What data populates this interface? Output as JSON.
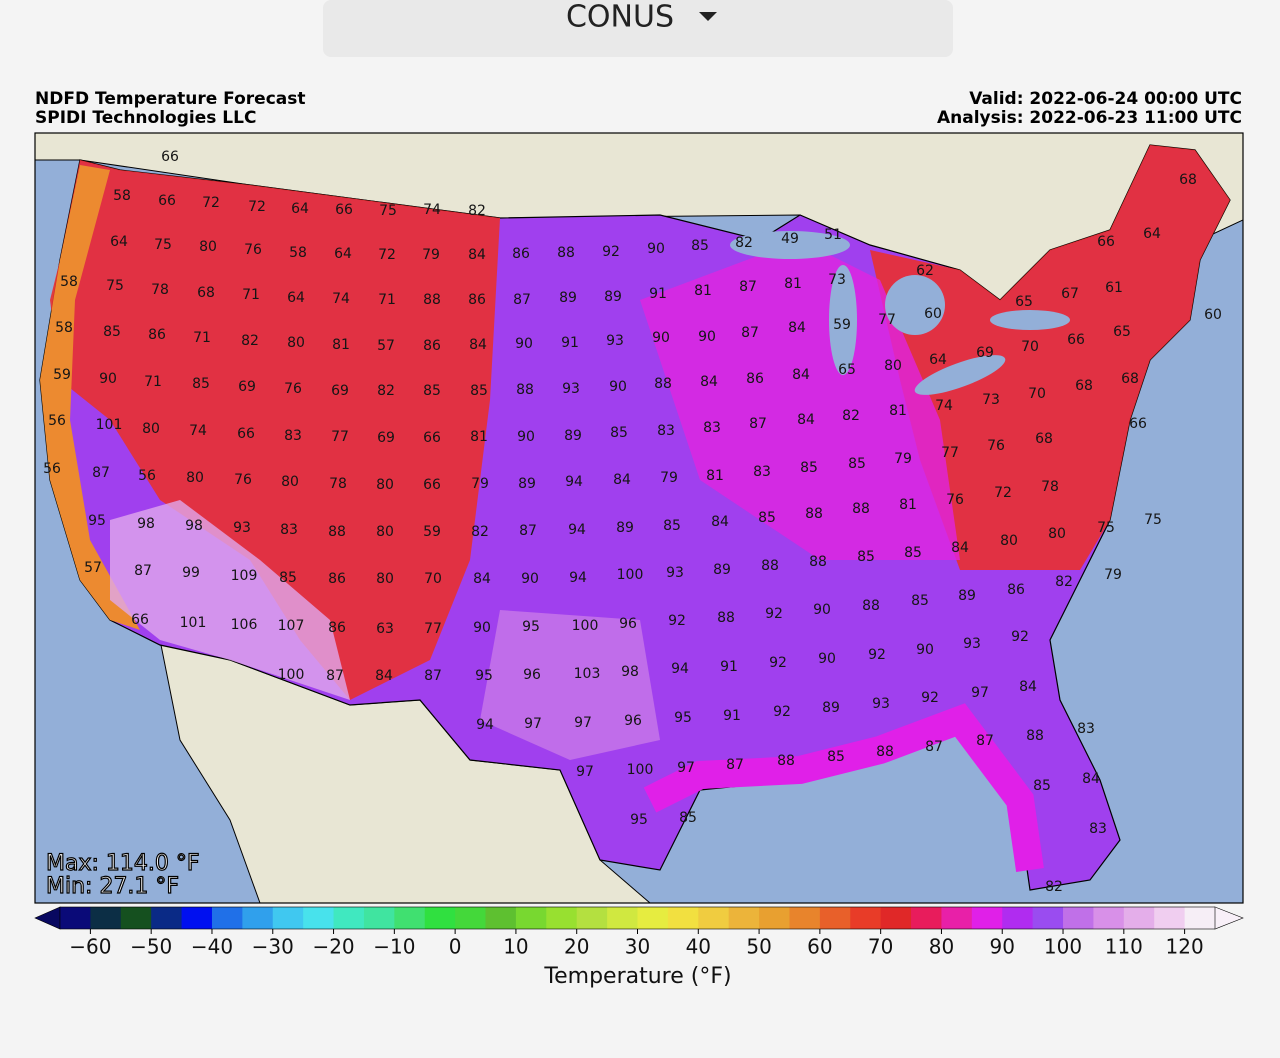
{
  "header": {
    "selector": "CONUS"
  },
  "map": {
    "title": "NDFD Temperature Forecast",
    "credit": "SPIDI Technologies LLC",
    "valid": "Valid: 2022-06-24 00:00 UTC",
    "analysis": "Analysis: 2022-06-23 11:00 UTC",
    "max": "Max: 114.0 °F",
    "min": "Min: 27.1 °F",
    "stations": [
      66,
      58,
      66,
      72,
      72,
      64,
      66,
      75,
      74,
      82,
      64,
      75,
      80,
      76,
      58,
      64,
      72,
      79,
      84,
      86,
      88,
      92,
      90,
      85,
      82,
      49,
      51,
      66,
      64,
      68,
      58,
      75,
      78,
      68,
      71,
      64,
      74,
      71,
      88,
      86,
      87,
      89,
      89,
      91,
      81,
      87,
      81,
      73,
      62,
      67,
      61,
      65,
      60,
      58,
      85,
      86,
      71,
      82,
      80,
      81,
      57,
      86,
      84,
      90,
      91,
      93,
      90,
      90,
      87,
      84,
      59,
      77,
      60,
      69,
      70,
      66,
      65,
      59,
      90,
      71,
      85,
      69,
      76,
      69,
      82,
      85,
      85,
      88,
      93,
      90,
      88,
      84,
      86,
      84,
      65,
      80,
      64,
      73,
      70,
      68,
      68,
      56,
      101,
      80,
      74,
      66,
      83,
      77,
      69,
      66,
      81,
      90,
      89,
      85,
      83,
      83,
      87,
      84,
      82,
      81,
      74,
      76,
      68,
      66,
      56,
      87,
      56,
      80,
      76,
      80,
      78,
      80,
      66,
      79,
      89,
      94,
      84,
      79,
      81,
      83,
      85,
      85,
      79,
      77,
      76,
      72,
      78,
      95,
      98,
      98,
      93,
      83,
      88,
      80,
      59,
      82,
      87,
      94,
      89,
      85,
      84,
      85,
      88,
      88,
      81,
      80,
      80,
      75,
      75,
      57,
      87,
      99,
      109,
      85,
      86,
      80,
      70,
      84,
      90,
      94,
      100,
      93,
      89,
      88,
      88,
      85,
      85,
      84,
      86,
      82,
      79,
      66,
      101,
      106,
      107,
      86,
      63,
      77,
      90,
      95,
      100,
      96,
      92,
      88,
      92,
      90,
      88,
      85,
      89,
      93,
      92,
      100,
      87,
      84,
      87,
      95,
      96,
      103,
      98,
      94,
      91,
      92,
      90,
      92,
      90,
      92,
      97,
      84,
      94,
      97,
      97,
      96,
      95,
      91,
      92,
      89,
      93,
      88,
      87,
      87,
      88,
      83,
      97,
      100,
      97,
      87,
      88,
      85,
      85,
      84,
      95,
      85,
      83,
      82
    ]
  },
  "colorbar": {
    "label": "Temperature (°F)",
    "range": [
      -65,
      125
    ],
    "step": 5,
    "under_color": "#080860",
    "over_color": "#f8f0f8",
    "colors": [
      "#0a0a78",
      "#0c2e45",
      "#15501f",
      "#0a2a86",
      "#0010f0",
      "#2070e8",
      "#30a0ec",
      "#40c8f0",
      "#48e2ec",
      "#40e8c0",
      "#40e4a0",
      "#40e070",
      "#30e040",
      "#44d83a",
      "#5ec030",
      "#78d830",
      "#98e030",
      "#b4e040",
      "#d0e840",
      "#e6ec40",
      "#f2e040",
      "#f0cc40",
      "#ecb43a",
      "#e8a030",
      "#e8842c",
      "#e8602a",
      "#e83c28",
      "#e02828",
      "#e81c5c",
      "#e820a8",
      "#e020e8",
      "#b02cf0",
      "#9a4cf0",
      "#c070e8",
      "#d890e8",
      "#e4aeea",
      "#f0cef0",
      "#f6eef6"
    ],
    "ticks": [
      {
        "value": -60,
        "label": "−60"
      },
      {
        "value": -50,
        "label": "−50"
      },
      {
        "value": -40,
        "label": "−40"
      },
      {
        "value": -30,
        "label": "−30"
      },
      {
        "value": -20,
        "label": "−20"
      },
      {
        "value": -10,
        "label": "−10"
      },
      0,
      10,
      20,
      30,
      40,
      50,
      60,
      70,
      80,
      90,
      100,
      110,
      120
    ]
  }
}
